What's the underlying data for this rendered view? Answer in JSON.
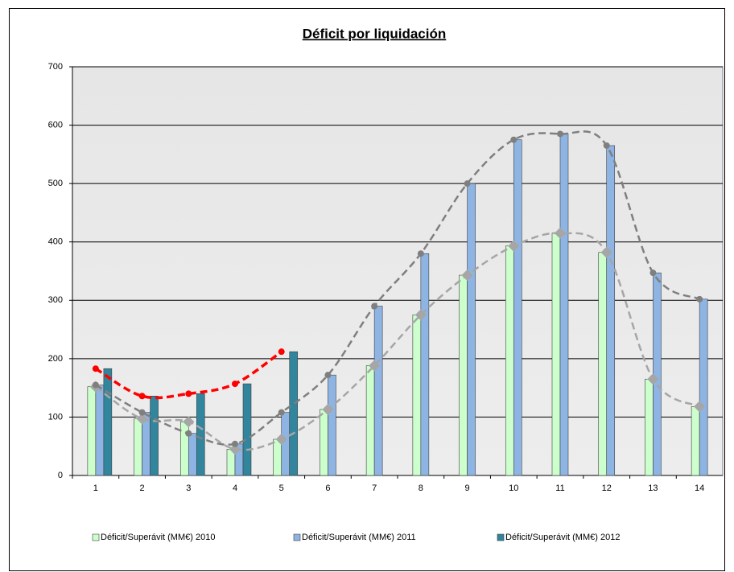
{
  "chart_data": {
    "type": "bar",
    "title": "Déficit por liquidación",
    "categories": [
      "1",
      "2",
      "3",
      "4",
      "5",
      "6",
      "7",
      "8",
      "9",
      "10",
      "11",
      "12",
      "13",
      "14"
    ],
    "series": [
      {
        "name": "Déficit/Superávit (MM€) 2010",
        "color": "#ccffcc",
        "line_color": "#a6a6a6",
        "values": [
          152,
          97,
          92,
          45,
          62,
          113,
          188,
          275,
          343,
          393,
          415,
          382,
          165,
          118
        ]
      },
      {
        "name": "Déficit/Superávit (MM€) 2011",
        "color": "#8eb4e3",
        "line_color": "#7f7f7f",
        "values": [
          155,
          108,
          72,
          54,
          108,
          172,
          290,
          380,
          500,
          575,
          585,
          565,
          347,
          302
        ]
      },
      {
        "name": "Déficit/Superávit (MM€) 2012",
        "color": "#31859c",
        "line_color": "#ff0000",
        "values": [
          183,
          136,
          140,
          157,
          212,
          null,
          null,
          null,
          null,
          null,
          null,
          null,
          null,
          null
        ]
      }
    ],
    "ylim": [
      0,
      700
    ],
    "yticks": [
      0,
      100,
      200,
      300,
      400,
      500,
      600,
      700
    ],
    "grid": true,
    "legend": "bottom"
  }
}
